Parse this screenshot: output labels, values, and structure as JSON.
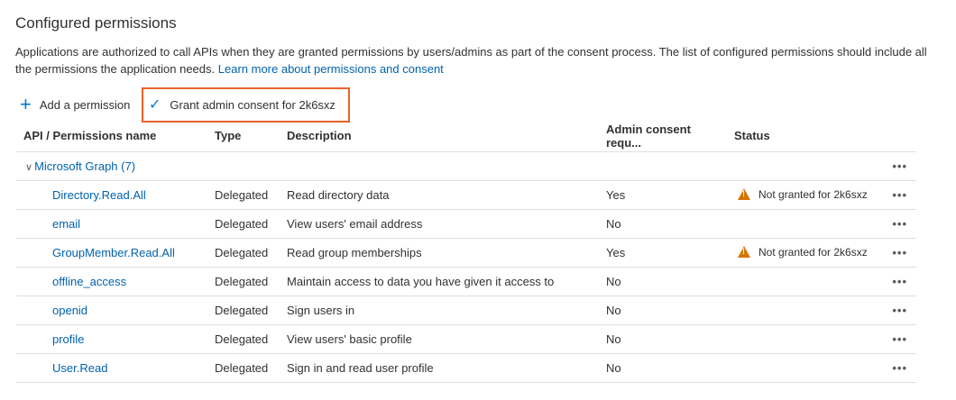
{
  "title": "Configured permissions",
  "intro": {
    "text": "Applications are authorized to call APIs when they are granted permissions by users/admins as part of the consent process. The list of configured permissions should include all the permissions the application needs. ",
    "link": "Learn more about permissions and consent"
  },
  "toolbar": {
    "add_label": "Add a permission",
    "grant_label": "Grant admin consent for 2k6sxz",
    "highlight_color": "#e8612c"
  },
  "table": {
    "headers": [
      "API / Permissions name",
      "Type",
      "Description",
      "Admin consent requ...",
      "Status"
    ],
    "group": "Microsoft Graph (7)",
    "more": "•••",
    "rows": [
      {
        "name": "Directory.Read.All",
        "type": "Delegated",
        "description": "Read directory data",
        "admin": "Yes",
        "status": "Not granted for 2k6sxz"
      },
      {
        "name": "email",
        "type": "Delegated",
        "description": "View users' email address",
        "admin": "No",
        "status": ""
      },
      {
        "name": "GroupMember.Read.All",
        "type": "Delegated",
        "description": "Read group memberships",
        "admin": "Yes",
        "status": "Not granted for 2k6sxz"
      },
      {
        "name": "offline_access",
        "type": "Delegated",
        "description": "Maintain access to data you have given it access to",
        "admin": "No",
        "status": ""
      },
      {
        "name": "openid",
        "type": "Delegated",
        "description": "Sign users in",
        "admin": "No",
        "status": ""
      },
      {
        "name": "profile",
        "type": "Delegated",
        "description": "View users' basic profile",
        "admin": "No",
        "status": ""
      },
      {
        "name": "User.Read",
        "type": "Delegated",
        "description": "Sign in and read user profile",
        "admin": "No",
        "status": ""
      }
    ]
  }
}
